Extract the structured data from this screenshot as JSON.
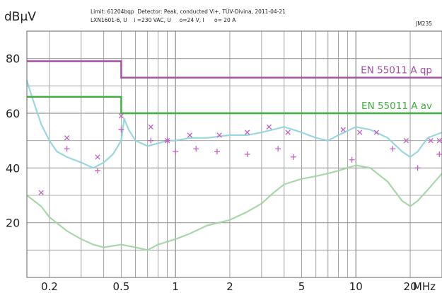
{
  "header": {
    "unit_label": "dBµV",
    "meta_line1": "Limit: 61204bqp  Detector: Peak, conducted Vi+, TÜV-Divina, 2011-04-21",
    "meta_line2": "LXN1601-6, U    i =230 VAC, U     o=24 V, I      o= 20 A",
    "code": "JM235"
  },
  "colors": {
    "qp_limit": "#a64ca6",
    "av_limit": "#3fae3f",
    "peak_trace": "#8fd3dc",
    "avg_trace": "#9fd39f",
    "qp_marker": "#c262c2",
    "grid": "#999999"
  },
  "chart_data": {
    "type": "line",
    "title": "",
    "xlabel": "MHz",
    "ylabel": "dBµV",
    "x_scale": "log",
    "xlim": [
      0.15,
      30
    ],
    "ylim": [
      0,
      90
    ],
    "x_tick_labels": [
      {
        "value": 0.2,
        "label": "0.2"
      },
      {
        "value": 0.5,
        "label": "0.5"
      },
      {
        "value": 1,
        "label": "1"
      },
      {
        "value": 2,
        "label": "2"
      },
      {
        "value": 5,
        "label": "5"
      },
      {
        "value": 10,
        "label": "10"
      },
      {
        "value": 20,
        "label": "20"
      },
      {
        "value": 29.6,
        "label": "MHz"
      }
    ],
    "y_tick_labels": [
      {
        "value": 20,
        "label": "20"
      },
      {
        "value": 40,
        "label": "40"
      },
      {
        "value": 60,
        "label": "60"
      },
      {
        "value": 80,
        "label": "80"
      }
    ],
    "grid": true,
    "limits": [
      {
        "name": "EN 55011 A qp",
        "points": [
          [
            0.15,
            79
          ],
          [
            0.5,
            79
          ],
          [
            0.5,
            73
          ],
          [
            30,
            73
          ]
        ]
      },
      {
        "name": "EN 55011 A av",
        "points": [
          [
            0.15,
            66
          ],
          [
            0.5,
            66
          ],
          [
            0.5,
            60
          ],
          [
            30,
            60
          ]
        ]
      }
    ],
    "series": [
      {
        "values": [
          [
            0.15,
            72
          ],
          [
            0.16,
            66
          ],
          [
            0.18,
            56
          ],
          [
            0.2,
            50
          ],
          [
            0.22,
            46
          ],
          [
            0.25,
            44
          ],
          [
            0.3,
            42
          ],
          [
            0.35,
            40
          ],
          [
            0.4,
            42
          ],
          [
            0.45,
            45
          ],
          [
            0.5,
            50
          ],
          [
            0.52,
            58
          ],
          [
            0.55,
            54
          ],
          [
            0.6,
            50
          ],
          [
            0.7,
            48
          ],
          [
            0.8,
            49
          ],
          [
            0.9,
            50
          ],
          [
            1.0,
            50
          ],
          [
            1.2,
            51
          ],
          [
            1.5,
            51
          ],
          [
            2.0,
            52
          ],
          [
            2.5,
            52
          ],
          [
            3.0,
            53
          ],
          [
            4.0,
            55
          ],
          [
            5.0,
            53
          ],
          [
            6.0,
            51
          ],
          [
            7.0,
            50
          ],
          [
            8.0,
            52
          ],
          [
            10.0,
            55
          ],
          [
            12.0,
            54
          ],
          [
            15.0,
            51
          ],
          [
            18.0,
            46
          ],
          [
            20.0,
            44
          ],
          [
            22.0,
            46
          ],
          [
            25.0,
            51
          ],
          [
            30.0,
            53
          ]
        ]
      },
      {
        "values": [
          [
            0.15,
            30
          ],
          [
            0.18,
            26
          ],
          [
            0.2,
            22
          ],
          [
            0.25,
            17
          ],
          [
            0.3,
            14
          ],
          [
            0.35,
            12
          ],
          [
            0.4,
            11
          ],
          [
            0.5,
            12
          ],
          [
            0.6,
            11
          ],
          [
            0.7,
            10
          ],
          [
            0.8,
            12
          ],
          [
            1.0,
            14
          ],
          [
            1.2,
            16
          ],
          [
            1.5,
            19
          ],
          [
            2.0,
            21
          ],
          [
            2.5,
            24
          ],
          [
            3.0,
            27
          ],
          [
            3.5,
            31
          ],
          [
            4.0,
            34
          ],
          [
            5.0,
            36
          ],
          [
            6.0,
            37
          ],
          [
            7.0,
            38
          ],
          [
            8.0,
            39
          ],
          [
            10.0,
            41
          ],
          [
            12.0,
            40
          ],
          [
            15.0,
            35
          ],
          [
            18.0,
            28
          ],
          [
            20.0,
            26
          ],
          [
            22.0,
            28
          ],
          [
            25.0,
            32
          ],
          [
            30.0,
            38
          ]
        ]
      }
    ],
    "qp_markers": [
      [
        0.18,
        31
      ],
      [
        0.25,
        51
      ],
      [
        0.37,
        44
      ],
      [
        0.5,
        59
      ],
      [
        0.73,
        55
      ],
      [
        0.9,
        50
      ],
      [
        1.2,
        52
      ],
      [
        1.75,
        52
      ],
      [
        2.5,
        53
      ],
      [
        3.3,
        55
      ],
      [
        4.2,
        53
      ],
      [
        8.5,
        54
      ],
      [
        10.5,
        53
      ],
      [
        13.0,
        53
      ],
      [
        19.0,
        50
      ],
      [
        26.0,
        50
      ],
      [
        29.0,
        50
      ]
    ],
    "av_markers": [
      [
        0.25,
        47
      ],
      [
        0.37,
        39
      ],
      [
        0.5,
        54
      ],
      [
        0.73,
        50
      ],
      [
        0.9,
        50
      ],
      [
        1.0,
        46
      ],
      [
        1.3,
        47
      ],
      [
        1.7,
        46
      ],
      [
        2.5,
        45
      ],
      [
        3.7,
        47
      ],
      [
        4.5,
        44
      ],
      [
        9.5,
        43
      ],
      [
        16.0,
        47
      ],
      [
        22.0,
        40
      ],
      [
        29.0,
        45
      ]
    ]
  }
}
